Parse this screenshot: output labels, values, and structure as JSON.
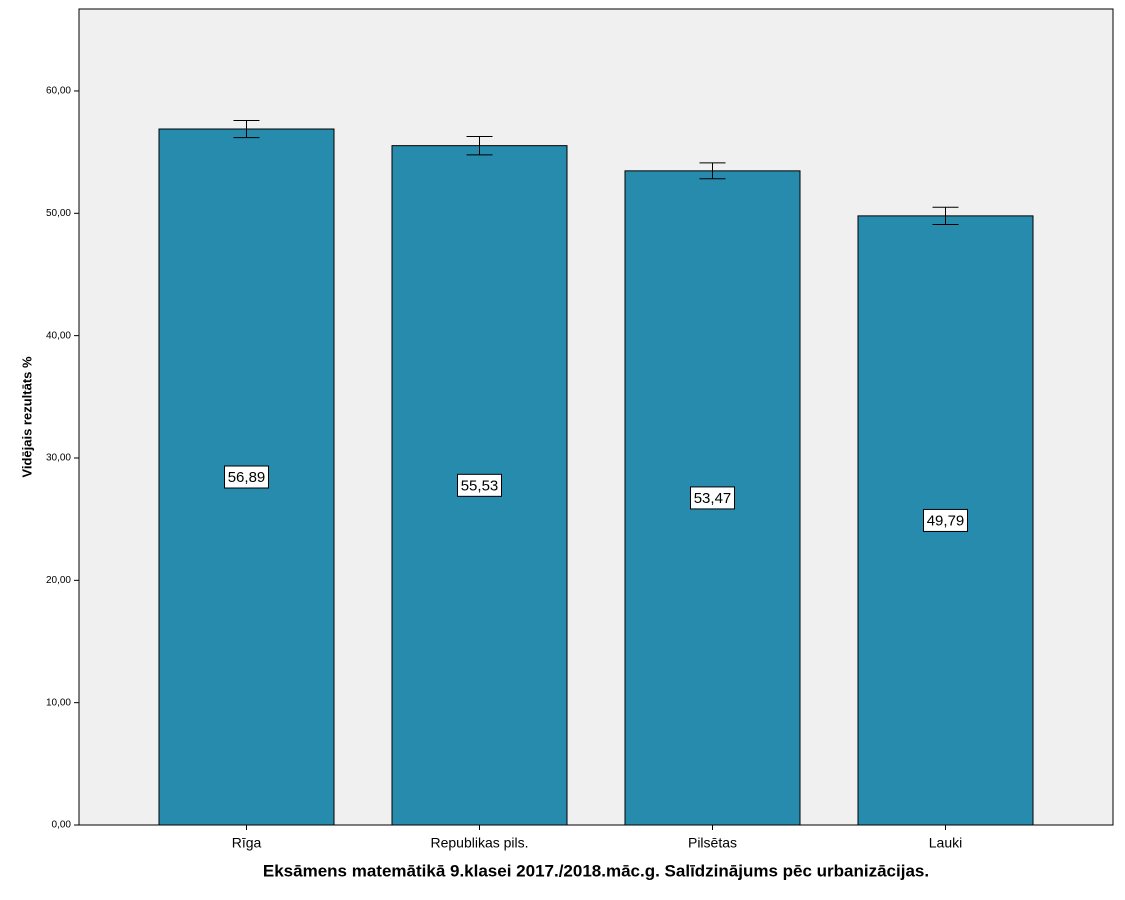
{
  "chart_data": {
    "type": "bar",
    "title": "Eksāmens matemātikā 9.klasei 2017./2018.māc.g. Salīdzinājums pēc urbanizācijas.",
    "y_label": "Vidējais rezultāts %",
    "categories": [
      "Rīga",
      "Republikas pils.",
      "Pilsētas",
      "Lauki"
    ],
    "values": [
      56.89,
      55.53,
      53.47,
      49.79
    ],
    "value_labels": [
      "56,89",
      "55,53",
      "53,47",
      "49,79"
    ],
    "errors": [
      0.7,
      0.75,
      0.65,
      0.7
    ],
    "color": "#268bad",
    "ylim": [
      0,
      66.7
    ],
    "yticks": [
      {
        "value": 0,
        "label": "0,00"
      },
      {
        "value": 10,
        "label": "10,00"
      },
      {
        "value": 20,
        "label": "20,00"
      },
      {
        "value": 30,
        "label": "30,00"
      },
      {
        "value": 40,
        "label": "40,00"
      },
      {
        "value": 50,
        "label": "50,00"
      },
      {
        "value": 60,
        "label": "60,00"
      }
    ],
    "grid": false
  }
}
